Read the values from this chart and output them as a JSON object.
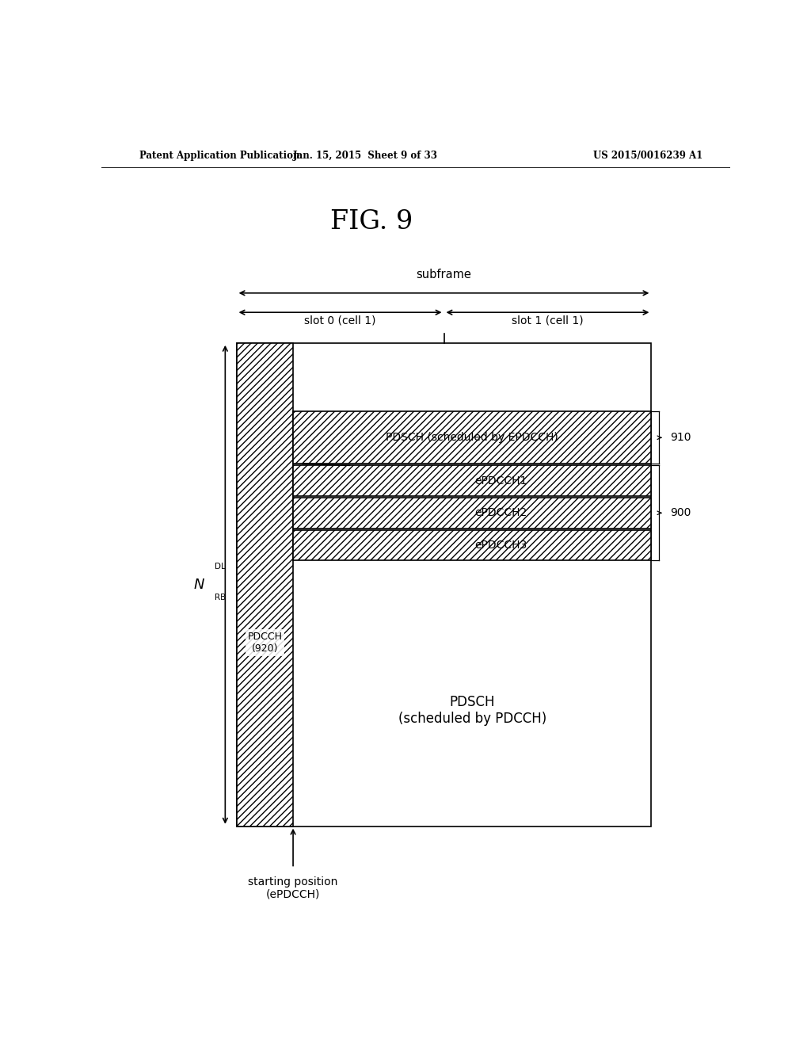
{
  "fig_title": "FIG. 9",
  "header_left": "Patent Application Publication",
  "header_mid": "Jan. 15, 2015  Sheet 9 of 33",
  "header_right": "US 2015/0016239 A1",
  "bg_color": "#ffffff",
  "line_color": "#000000",
  "subframe_label": "subframe",
  "slot0_label": "slot 0 (cell 1)",
  "slot1_label": "slot 1 (cell 1)",
  "pdsch_epdcch_label": "PDSCH (scheduled by EPDCCH)",
  "epdcch1_label": "ePDCCH1",
  "epdcch2_label": "ePDCCH2",
  "epdcch3_label": "ePDCCH3",
  "pdcch_label": "PDCCH\n(920)",
  "pdsch_pdcch_label": "PDSCH\n(scheduled by PDCCH)",
  "ref_910": "910",
  "ref_900": "900",
  "starting_pos_label": "starting position\n(ePDCCH)"
}
